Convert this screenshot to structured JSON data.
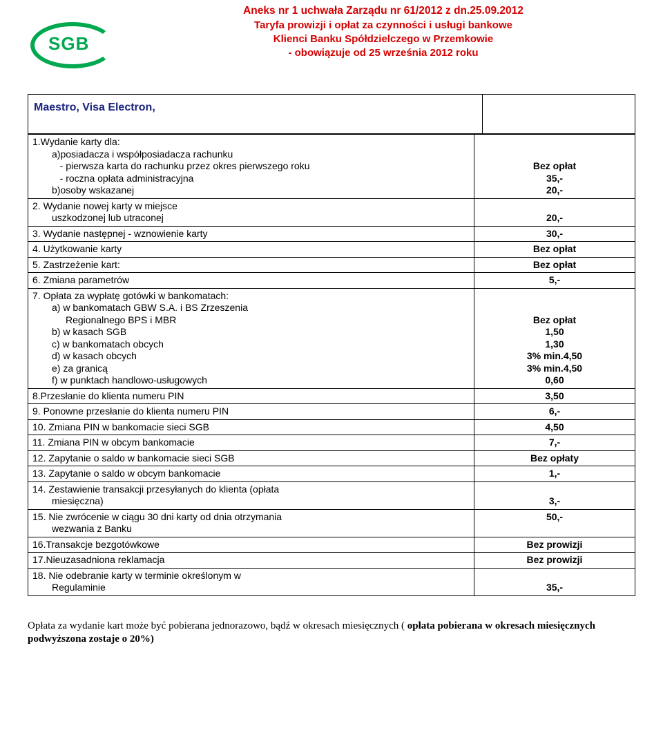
{
  "logo": {
    "brand": "SGB"
  },
  "header": {
    "line1": "Aneks nr 1 uchwała Zarządu nr 61/2012 z dn.25.09.2012",
    "line2": "Taryfa prowizji i opłat za czynności i usługi bankowe",
    "line3": "Klienci Banku  Spółdzielczego  w  Przemkowie",
    "line4": "- obowiązuje od 25 września 2012 roku"
  },
  "section_title": "Maestro,   Visa  Electron,",
  "rows": [
    {
      "label_html": "1.Wydanie  karty dla:<br><span class=\"indent1\">a)posiadacza i współposiadacza rachunku</span><br><span class=\"indent1\">&nbsp;&nbsp;&nbsp;- pierwsza karta do rachunku przez okres pierwszego roku</span><br><span class=\"indent1\">&nbsp;&nbsp;&nbsp;- roczna opłata administracyjna</span><br><span class=\"indent1\">b)osoby wskazanej</span>",
      "val_html": "<br><br>Bez opłat<br>35,-<br>20,-"
    },
    {
      "label_html": "2. Wydanie nowej karty  w miejsce<br><span class=\"indent1\">uszkodzonej lub utraconej</span>",
      "val_html": "<br>20,-"
    },
    {
      "label_html": "3. Wydanie  następnej  - wznowienie karty",
      "val_html": "30,-"
    },
    {
      "label_html": "4. Użytkowanie  karty",
      "val_html": "Bez  opłat"
    },
    {
      "label_html": "5. Zastrzeżenie kart:",
      "val_html": "Bez  opłat"
    },
    {
      "label_html": "6. Zmiana parametrów",
      "val_html": "5,-"
    },
    {
      "label_html": "7. Opłata za wypłatę gotówki w bankomatach:<br><span class=\"indent1\">a)  w bankomatach GBW S.A. i BS Zrzeszenia</span><br><span class=\"indent2\">Regionalnego  BPS i MBR</span><br><span class=\"indent1\">b)  w  kasach SGB</span><br><span class=\"indent1\">c)  w bankomatach obcych</span><br><span class=\"indent1\">d)  w kasach obcych</span><br><span class=\"indent1\">e)  za granicą</span><br><span class=\"indent1\">f)   w punktach handlowo-usługowych</span>",
      "val_html": "<br><br>Bez  opłat<br>1,50<br>1,30<br>3% min.4,50<br>3% min.4,50<br>0,60"
    },
    {
      "label_html": "8.Przesłanie do klienta numeru PIN",
      "val_html": "3,50"
    },
    {
      "label_html": "9. Ponowne przesłanie do klienta numeru PIN",
      "val_html": "6,-"
    },
    {
      "label_html": "10. Zmiana  PIN  w  bankomacie sieci SGB",
      "val_html": "4,50"
    },
    {
      "label_html": "11. Zmiana PIN w obcym bankomacie",
      "val_html": "7,-"
    },
    {
      "label_html": "12. Zapytanie o saldo w bankomacie sieci SGB",
      "val_html": "Bez opłaty"
    },
    {
      "label_html": "13. Zapytanie o saldo w obcym bankomacie",
      "val_html": "1,-"
    },
    {
      "label_html": "14. Zestawienie transakcji przesyłanych do klienta (opłata<br><span class=\"indent1\">miesięczna)</span>",
      "val_html": "<br>3,-"
    },
    {
      "label_html": "15. Nie zwrócenie w ciągu 30 dni karty od dnia otrzymania<br><span class=\"indent1\">wezwania z   Banku</span>",
      "val_html": "50,-"
    },
    {
      "label_html": "16.Transakcje bezgotówkowe",
      "val_html": "Bez prowizji"
    },
    {
      "label_html": "17.Nieuzasadniona reklamacja",
      "val_html": "Bez  prowizji"
    },
    {
      "label_html": "18. Nie  odebranie  karty  w  terminie  określonym  w<br><span class=\"indent1\">Regulaminie</span>",
      "val_html": "<br>35,-"
    }
  ],
  "footnote": {
    "pre": "Opłata za  wydanie  kart  może  być  pobierana  jednorazowo, bądź  w  okresach  miesięcznych  ( ",
    "bold": "opłata  pobierana  w okresach  miesięcznych  podwyższona  zostaje  o  20%)"
  }
}
